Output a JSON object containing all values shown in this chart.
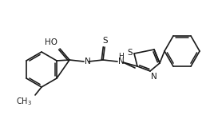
{
  "bg_color": "#ffffff",
  "line_color": "#1a1a1a",
  "line_width": 1.2,
  "font_size": 7.5,
  "figsize": [
    2.68,
    1.69
  ],
  "dpi": 100,
  "atoms": {
    "HO_label": "HO",
    "N_label": "N",
    "S_top_label": "S",
    "NH_label": "H\nN",
    "S_thz_label": "S",
    "N_thz_label": "N"
  }
}
